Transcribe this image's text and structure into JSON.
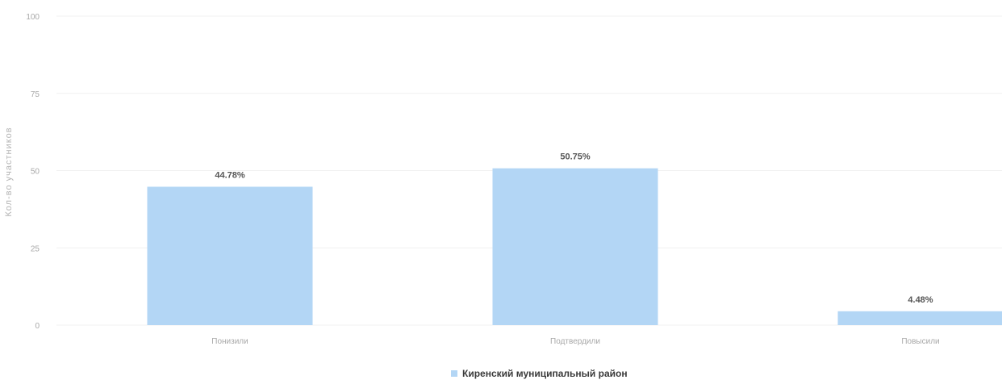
{
  "chart_data": {
    "type": "bar",
    "title": "",
    "xlabel": "",
    "ylabel": "Кол-во участников",
    "ylim": [
      0,
      100
    ],
    "yticks": [
      "0",
      "25",
      "50",
      "75",
      "100"
    ],
    "ytick_values": [
      0,
      25,
      50,
      75,
      100
    ],
    "categories": [
      "Понизили",
      "Подтвердили",
      "Повысили"
    ],
    "series": [
      {
        "name": "Киренский муниципальный район",
        "values": [
          44.78,
          50.75,
          4.48
        ],
        "labels": [
          "44.78%",
          "50.75%",
          "4.48%"
        ],
        "color": "#b3d6f5"
      }
    ],
    "grid": true,
    "legend": "bottom-center"
  }
}
